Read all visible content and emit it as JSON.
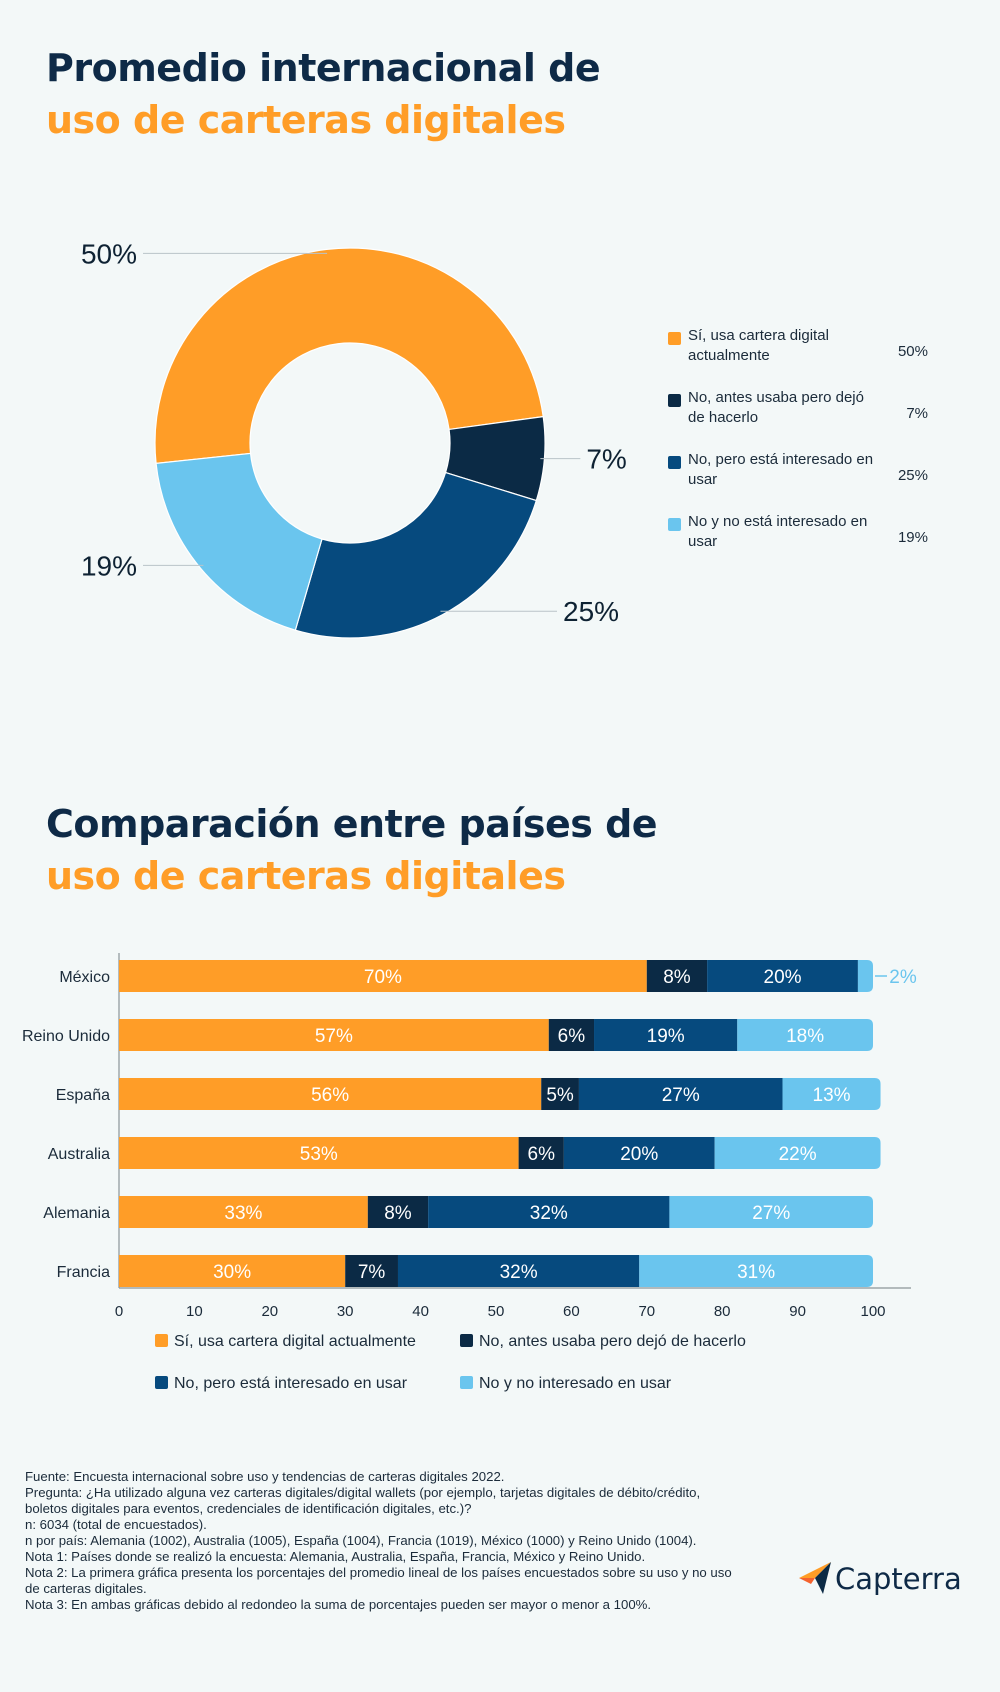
{
  "title1": {
    "line1": "Promedio internacional de",
    "line2": "uso de carteras digitales"
  },
  "title2": {
    "line1": "Comparación entre países de",
    "line2": "uso de carteras digitales"
  },
  "colors": {
    "si": "#ff9d27",
    "dejo": "#0b2a45",
    "interesado": "#064a7e",
    "no": "#6ac5ee",
    "title_dark": "#0e2a47",
    "title_orange": "#ff9d27"
  },
  "chart_data": [
    {
      "type": "pie",
      "title": "Promedio internacional de uso de carteras digitales",
      "donut": true,
      "categories": [
        "Sí, usa cartera digital actualmente",
        "No, antes usaba pero dejó de hacerlo",
        "No, pero está interesado en usar",
        "No y no está interesado en usar"
      ],
      "values": [
        50,
        7,
        25,
        19
      ],
      "labels": [
        "50%",
        "7%",
        "25%",
        "19%"
      ],
      "legend": "right"
    },
    {
      "type": "bar",
      "orientation": "horizontal",
      "stacked": true,
      "title": "Comparación entre países de uso de carteras digitales",
      "categories": [
        "México",
        "Reino Unido",
        "España",
        "Australia",
        "Alemania",
        "Francia"
      ],
      "series": [
        {
          "name": "Sí, usa cartera digital actualmente",
          "values": [
            70,
            57,
            56,
            53,
            33,
            30
          ]
        },
        {
          "name": "No, antes usaba pero dejó de hacerlo",
          "values": [
            8,
            6,
            5,
            6,
            8,
            7
          ]
        },
        {
          "name": "No, pero está interesado en usar",
          "values": [
            20,
            19,
            27,
            20,
            32,
            32
          ]
        },
        {
          "name": "No y no interesado en usar",
          "values": [
            2,
            18,
            13,
            22,
            27,
            31
          ]
        }
      ],
      "xlim": [
        0,
        100
      ],
      "xticks": [
        "0",
        "10",
        "20",
        "30",
        "40",
        "50",
        "60",
        "70",
        "80",
        "90",
        "100"
      ],
      "legend": "bottom"
    }
  ],
  "donut_legend": [
    {
      "label": "Sí, usa cartera digital actualmente",
      "value": "50%"
    },
    {
      "label": "No, antes usaba pero dejó de hacerlo",
      "value": "7%"
    },
    {
      "label": "No, pero está interesado en usar",
      "value": "25%"
    },
    {
      "label": "No y no está interesado en usar",
      "value": "19%"
    }
  ],
  "bar_legend": [
    "Sí, usa cartera digital actualmente",
    "No, antes usaba pero dejó de hacerlo",
    "No, pero está interesado en usar",
    "No y no interesado en usar"
  ],
  "notes": [
    "Fuente: Encuesta internacional sobre uso y tendencias de carteras digitales 2022.",
    "Pregunta: ¿Ha utilizado alguna vez carteras digitales/digital wallets (por ejemplo, tarjetas digitales de débito/crédito, boletos digitales para eventos, credenciales de identificación digitales, etc.)?",
    "n: 6034 (total de encuestados).",
    "n por país: Alemania (1002), Australia (1005), España (1004), Francia (1019), México (1000) y Reino Unido (1004).",
    "Nota 1: Países donde se realizó la encuesta: Alemania, Australia, España, Francia, México y Reino Unido.",
    "Nota 2: La primera gráfica presenta los porcentajes del promedio lineal de los países encuestados sobre su uso y no uso de carteras digitales.",
    "Nota 3: En ambas gráficas debido al redondeo la suma de porcentajes pueden ser mayor o menor a 100%."
  ],
  "logo": {
    "text": "Capterra",
    "icon": "capterra-arrow-icon"
  }
}
